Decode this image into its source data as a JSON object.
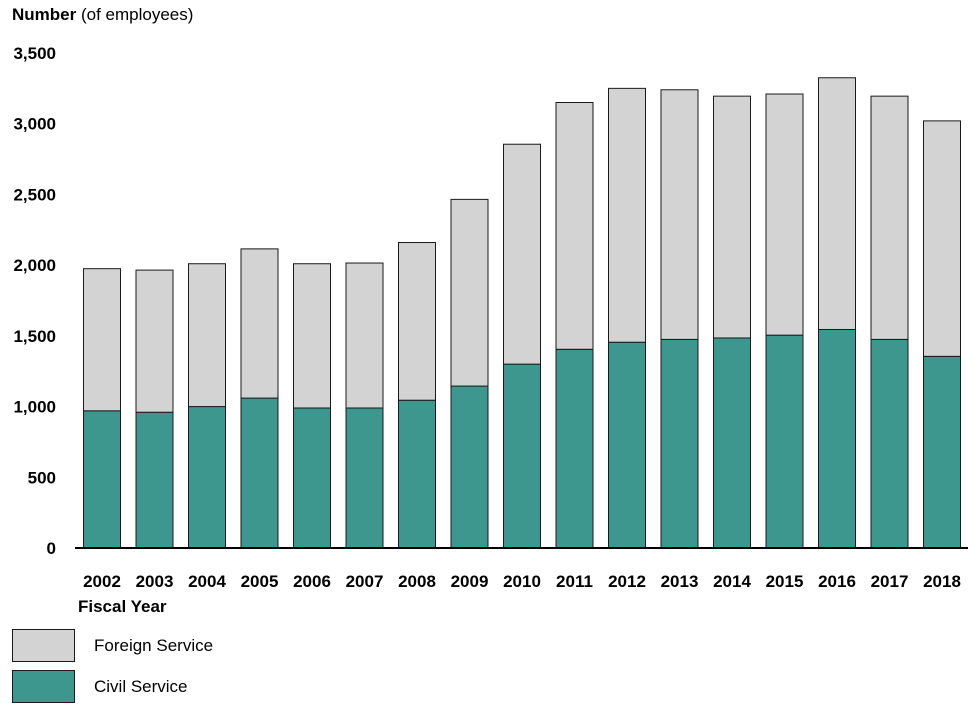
{
  "header": {
    "y_title_bold": "Number",
    "y_title_rest": " (of employees)"
  },
  "x_title": "Fiscal Year",
  "legend": {
    "items": [
      {
        "label": "Foreign Service",
        "color": "#d3d3d3"
      },
      {
        "label": "Civil Service",
        "color": "#3e978f"
      }
    ]
  },
  "chart_data": {
    "type": "bar",
    "stacked": true,
    "categories": [
      "2002",
      "2003",
      "2004",
      "2005",
      "2006",
      "2007",
      "2008",
      "2009",
      "2010",
      "2011",
      "2012",
      "2013",
      "2014",
      "2015",
      "2016",
      "2017",
      "2018"
    ],
    "series": [
      {
        "name": "Civil Service",
        "color": "#3e978f",
        "values": [
          970,
          960,
          1000,
          1060,
          990,
          990,
          1045,
          1145,
          1300,
          1405,
          1455,
          1475,
          1485,
          1505,
          1545,
          1475,
          1355
        ]
      },
      {
        "name": "Foreign Service",
        "color": "#d3d3d3",
        "values": [
          1005,
          1005,
          1010,
          1055,
          1020,
          1025,
          1115,
          1320,
          1555,
          1745,
          1795,
          1765,
          1710,
          1705,
          1780,
          1720,
          1665
        ]
      }
    ],
    "totals": [
      1975,
      1965,
      2010,
      2115,
      2010,
      2015,
      2160,
      2465,
      2855,
      3150,
      3250,
      3240,
      3195,
      3210,
      3325,
      3195,
      3020
    ],
    "yticks": [
      "0",
      "500",
      "1,000",
      "1,500",
      "2,000",
      "2,500",
      "3,000",
      "3,500"
    ],
    "ylim": [
      0,
      3500
    ],
    "grid": false,
    "legend_position": "bottom-left"
  }
}
